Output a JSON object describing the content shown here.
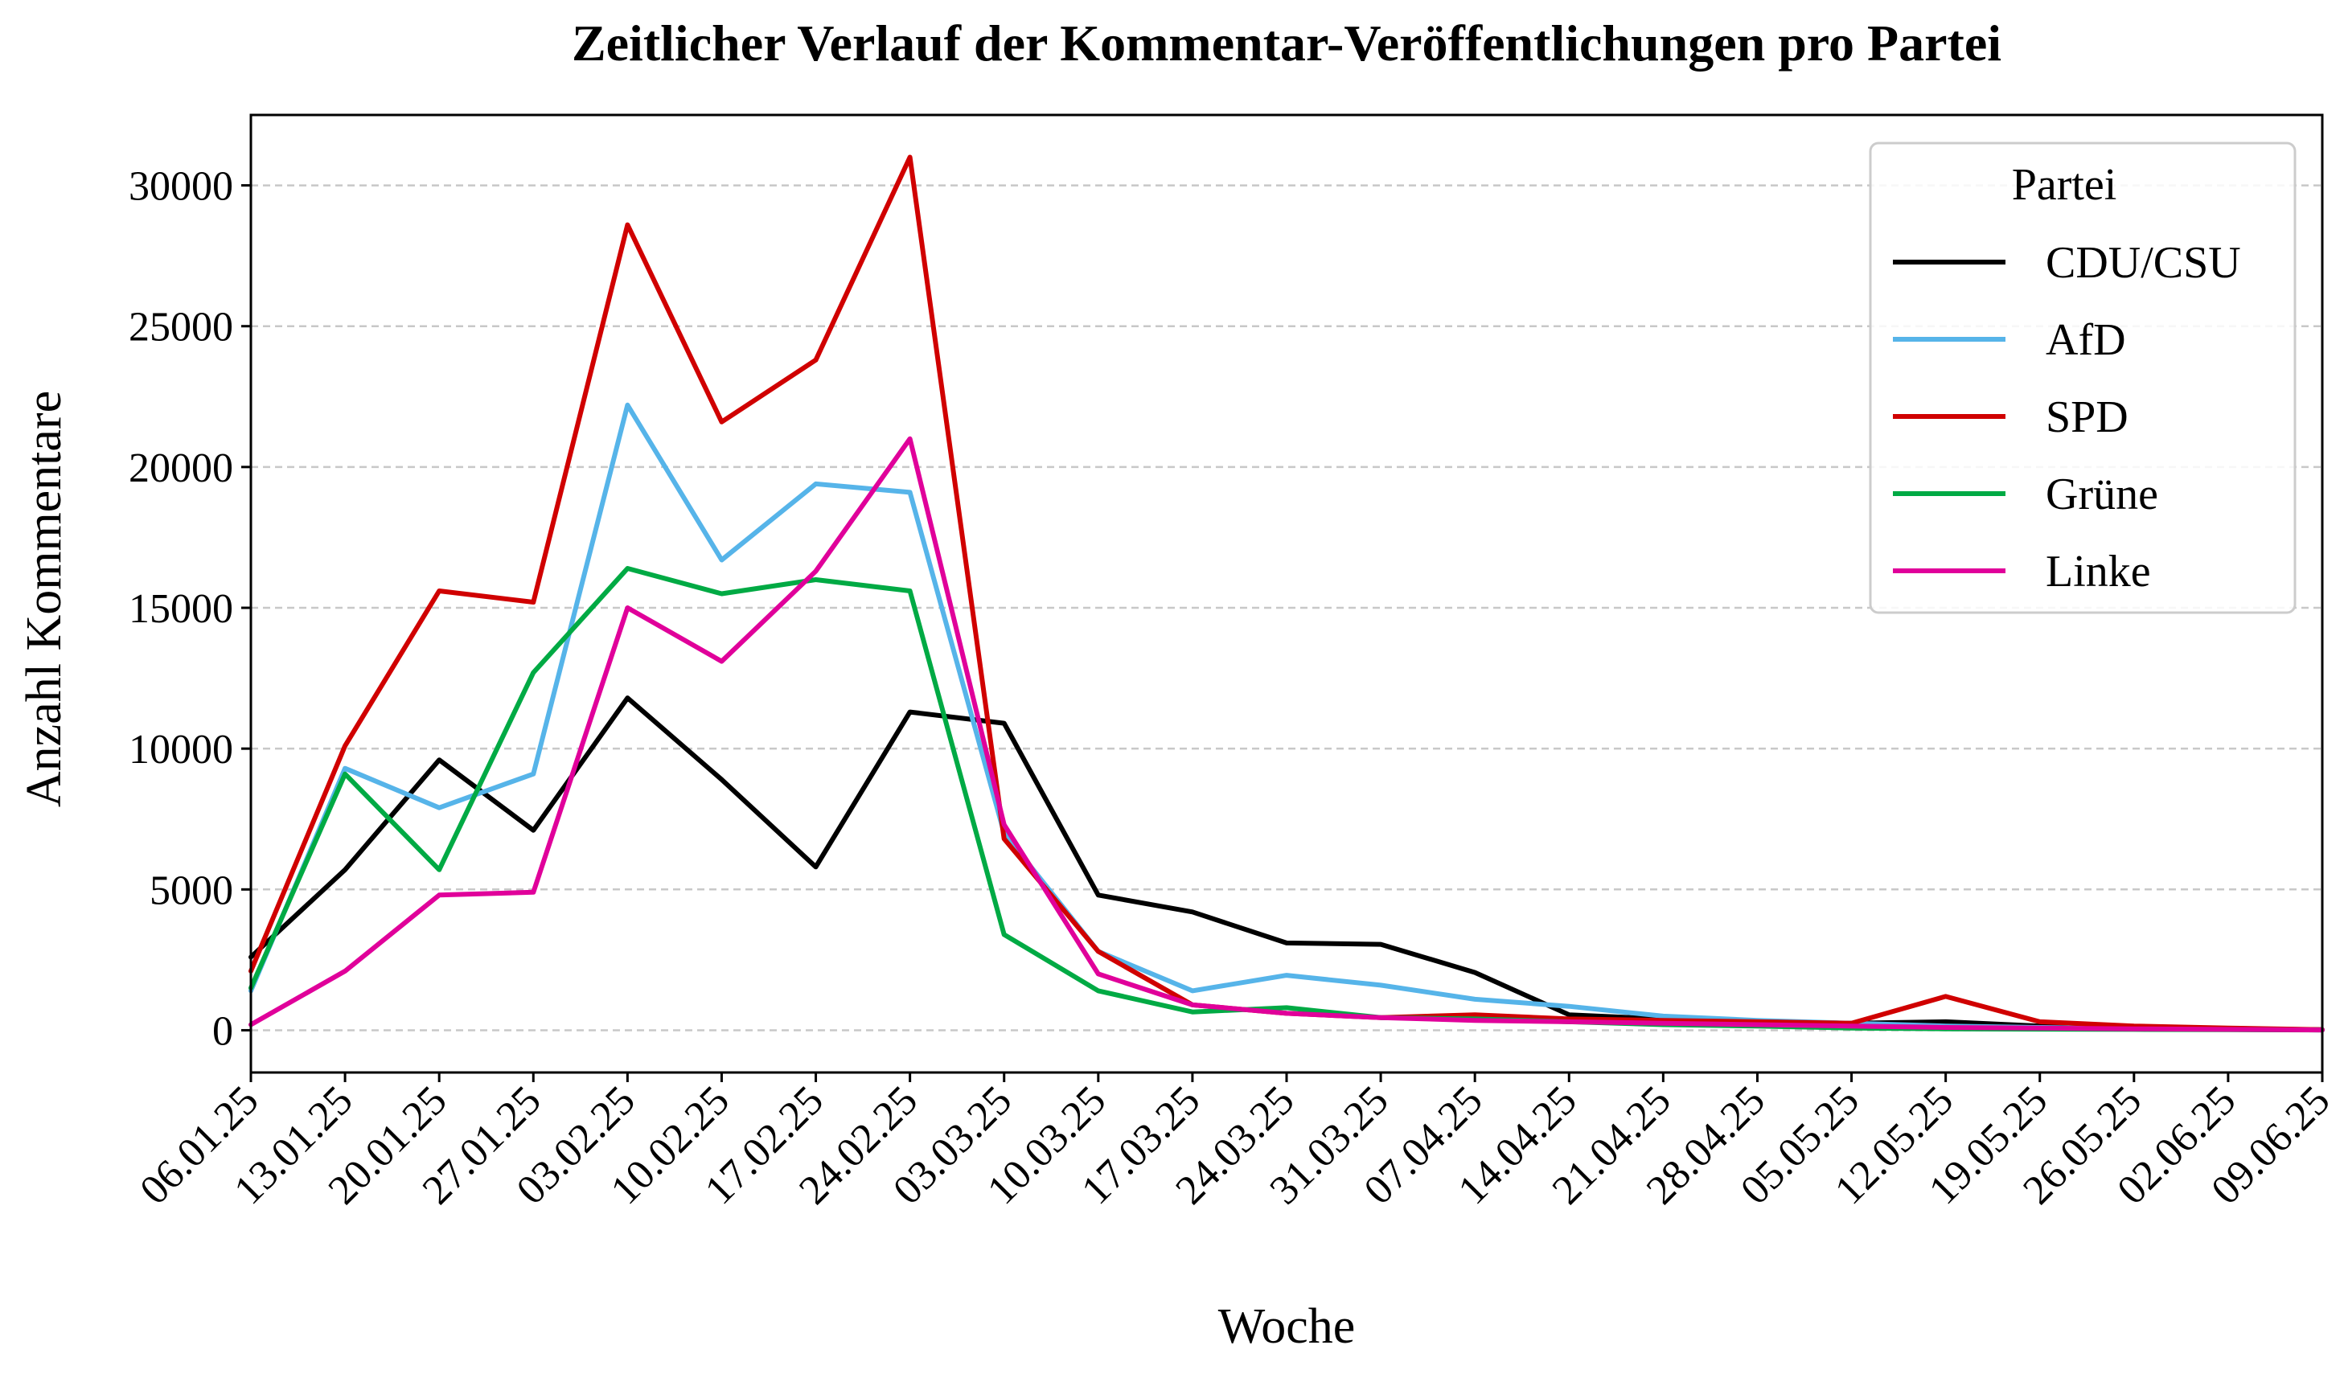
{
  "chart_data": {
    "type": "line",
    "title": "Zeitlicher Verlauf der Kommentar-Veröffentlichungen pro Partei",
    "xlabel": "Woche",
    "ylabel": "Anzahl Kommentare",
    "ylim": [
      -1500,
      32500
    ],
    "yticks": [
      0,
      5000,
      10000,
      15000,
      20000,
      25000,
      30000
    ],
    "grid": "y",
    "legend_title": "Partei",
    "legend_position": "top-right",
    "categories": [
      "06.01.25",
      "13.01.25",
      "20.01.25",
      "27.01.25",
      "03.02.25",
      "10.02.25",
      "17.02.25",
      "24.02.25",
      "03.03.25",
      "10.03.25",
      "17.03.25",
      "24.03.25",
      "31.03.25",
      "07.04.25",
      "14.04.25",
      "21.04.25",
      "28.04.25",
      "05.05.25",
      "12.05.25",
      "19.05.25",
      "26.05.25",
      "02.06.25",
      "09.06.25"
    ],
    "series": [
      {
        "name": "CDU/CSU",
        "color": "#000000",
        "values": [
          2600,
          5700,
          9600,
          7100,
          11800,
          8900,
          5800,
          11300,
          10900,
          4800,
          4200,
          3100,
          3050,
          2050,
          550,
          400,
          300,
          250,
          300,
          150,
          100,
          50,
          20
        ]
      },
      {
        "name": "AfD",
        "color": "#56b4e9",
        "values": [
          1400,
          9300,
          7900,
          9100,
          22200,
          16700,
          19400,
          19100,
          7000,
          2800,
          1400,
          1950,
          1600,
          1100,
          850,
          500,
          350,
          250,
          150,
          100,
          50,
          30,
          10
        ]
      },
      {
        "name": "SPD",
        "color": "#d00000",
        "values": [
          2100,
          10100,
          15600,
          15200,
          28600,
          21600,
          23800,
          31000,
          6800,
          2800,
          900,
          600,
          450,
          550,
          400,
          350,
          300,
          250,
          1200,
          300,
          150,
          80,
          20
        ]
      },
      {
        "name": "Grüne",
        "color": "#00aa44",
        "values": [
          1500,
          9100,
          5700,
          12700,
          16400,
          15500,
          16000,
          15600,
          3400,
          1400,
          650,
          800,
          450,
          400,
          300,
          200,
          150,
          80,
          50,
          40,
          30,
          20,
          10
        ]
      },
      {
        "name": "Linke",
        "color": "#e0009a",
        "values": [
          200,
          2100,
          4800,
          4900,
          15000,
          13100,
          16300,
          21000,
          7300,
          2000,
          900,
          600,
          450,
          350,
          300,
          250,
          200,
          150,
          100,
          80,
          50,
          30,
          10
        ]
      }
    ]
  }
}
